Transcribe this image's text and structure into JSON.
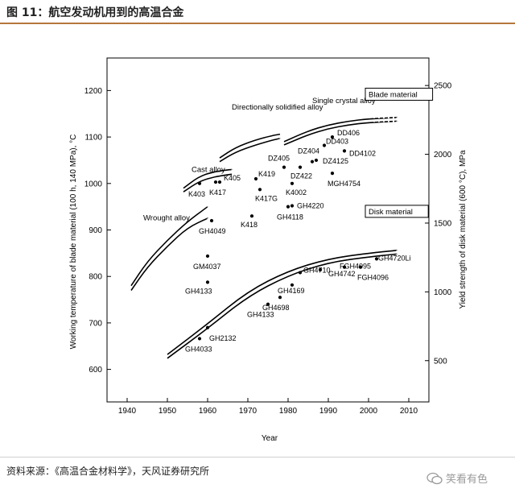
{
  "header": {
    "title": "图 11：航空发动机用到的高温合金"
  },
  "footer": {
    "source": "资料来源：《高温合金材料学》，天风证券研究所",
    "watermark": "笑看有色"
  },
  "chart_data": {
    "type": "scatter",
    "xlabel": "Year",
    "ylabel": "Working temperature of blade material (100 h, 140 MPa), °C",
    "y2label": "Yield strength of disk material (600 °C), MPa",
    "xlim": [
      1935,
      2015
    ],
    "ylim": [
      530,
      1270
    ],
    "y2lim": [
      200,
      2700
    ],
    "xticks": [
      1940,
      1950,
      1960,
      1970,
      1980,
      1990,
      2000,
      2010
    ],
    "yticks": [
      600,
      700,
      800,
      900,
      1000,
      1100,
      1200
    ],
    "y2ticks": [
      500,
      1000,
      1500,
      2000,
      2500
    ],
    "boxes": [
      {
        "label": "Blade material",
        "x": 2000,
        "y": 1186
      },
      {
        "label": "Disk material",
        "x": 2000,
        "y": 934
      }
    ],
    "category_labels": [
      {
        "label": "Wrought alloy",
        "x": 1944,
        "y": 921
      },
      {
        "label": "Cast alloy",
        "x": 1956,
        "y": 1025
      },
      {
        "label": "Directionally solidified alloy",
        "x": 1966,
        "y": 1159
      },
      {
        "label": "Single crystal alloy",
        "x": 1986,
        "y": 1173
      }
    ],
    "blade_points": [
      {
        "label": "K403",
        "x": 1958,
        "y": 1000
      },
      {
        "label": "K405",
        "x": 1963,
        "y": 1003
      },
      {
        "label": "K417",
        "x": 1962,
        "y": 1003
      },
      {
        "label": "K419",
        "x": 1972,
        "y": 1010
      },
      {
        "label": "K417G",
        "x": 1973,
        "y": 987
      },
      {
        "label": "K4002",
        "x": 1981,
        "y": 1000
      },
      {
        "label": "K418",
        "x": 1971,
        "y": 930
      },
      {
        "label": "GH4118",
        "x": 1980,
        "y": 950
      },
      {
        "label": "GH4220",
        "x": 1981,
        "y": 952
      },
      {
        "label": "GH4049",
        "x": 1961,
        "y": 920
      },
      {
        "label": "DZ405",
        "x": 1979,
        "y": 1035
      },
      {
        "label": "DZ404",
        "x": 1986,
        "y": 1047
      },
      {
        "label": "DZ422",
        "x": 1983,
        "y": 1035
      },
      {
        "label": "DZ4125",
        "x": 1987,
        "y": 1050
      },
      {
        "label": "DD406",
        "x": 1991,
        "y": 1100
      },
      {
        "label": "DD403",
        "x": 1989,
        "y": 1082
      },
      {
        "label": "DD4102",
        "x": 1994,
        "y": 1070
      },
      {
        "label": "MGH4754",
        "x": 1991,
        "y": 1022
      }
    ],
    "disk_points": [
      {
        "label": "GM4037",
        "x": 1960,
        "y": 1260
      },
      {
        "label": "GH4133",
        "x": 1960,
        "y": 1070
      },
      {
        "label": "GH2132",
        "x": 1960,
        "y": 740
      },
      {
        "label": "GH4033",
        "x": 1958,
        "y": 660
      },
      {
        "label": "GH4133",
        "x": 1975,
        "y": 910
      },
      {
        "label": "GH4698",
        "x": 1978,
        "y": 960
      },
      {
        "label": "GH4169",
        "x": 1981,
        "y": 1050
      },
      {
        "label": "GH4710",
        "x": 1983,
        "y": 1140
      },
      {
        "label": "GH4742",
        "x": 1988,
        "y": 1160
      },
      {
        "label": "FGH4095",
        "x": 1994,
        "y": 1180
      },
      {
        "label": "FGH4096",
        "x": 1998,
        "y": 1180
      },
      {
        "label": "GH4720Li",
        "x": 2002,
        "y": 1240
      }
    ],
    "bands": [
      {
        "name": "Wrought alloy",
        "x": [
          1941,
          1945,
          1950,
          1955,
          1960
        ],
        "y_low": [
          770,
          820,
          865,
          905,
          925
        ],
        "y_high": [
          780,
          832,
          878,
          918,
          950
        ]
      },
      {
        "name": "Cast alloy",
        "x": [
          1954,
          1958,
          1962,
          1966
        ],
        "y_low": [
          982,
          1005,
          1015,
          1020
        ],
        "y_high": [
          990,
          1016,
          1026,
          1030
        ]
      },
      {
        "name": "Directionally solidified alloy",
        "x": [
          1963,
          1967,
          1972,
          1976,
          1978
        ],
        "y_low": [
          1047,
          1068,
          1083,
          1093,
          1097
        ],
        "y_high": [
          1055,
          1078,
          1094,
          1103,
          1106
        ]
      },
      {
        "name": "Single crystal alloy",
        "x": [
          1979,
          1985,
          1990,
          1995,
          2000,
          2007
        ],
        "y_low": [
          1083,
          1105,
          1118,
          1126,
          1131,
          1134
        ],
        "y_high": [
          1090,
          1113,
          1126,
          1134,
          1139,
          1142
        ]
      },
      {
        "name": "Disk material",
        "x": [
          1950,
          1960,
          1970,
          1980,
          1990,
          2000,
          2007
        ],
        "y_low": [
          624,
          688,
          757,
          802,
          830,
          842,
          848
        ],
        "y_high": [
          632,
          698,
          768,
          812,
          838,
          850,
          856
        ]
      }
    ]
  }
}
